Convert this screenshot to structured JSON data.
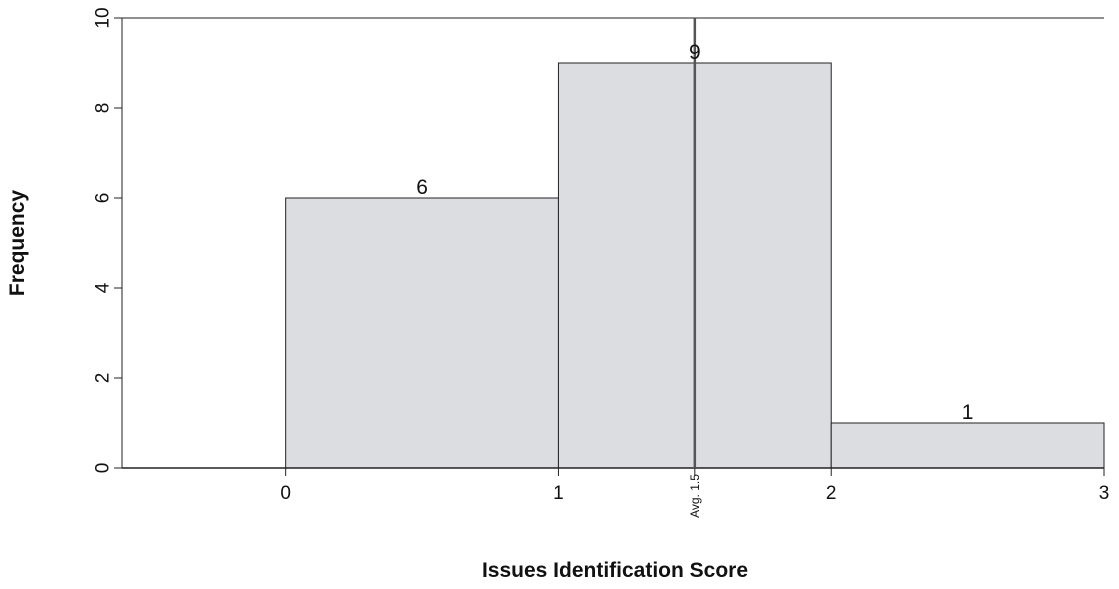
{
  "chart_data": {
    "type": "bar",
    "title": "",
    "xlabel": "Issues Identification Score",
    "ylabel": "Frequency",
    "xlim": [
      -0.6,
      3
    ],
    "ylim": [
      0,
      10
    ],
    "x_ticks": [
      0,
      1,
      2,
      3
    ],
    "y_ticks": [
      0,
      2,
      4,
      6,
      8,
      10
    ],
    "bins": [
      {
        "start": 0,
        "end": 1,
        "value": 6,
        "label": "6"
      },
      {
        "start": 1,
        "end": 2,
        "value": 9,
        "label": "9"
      },
      {
        "start": 2,
        "end": 3,
        "value": 1,
        "label": "1"
      }
    ],
    "mean_line": {
      "value": 1.5,
      "label": "Avg. 1.5"
    },
    "grid": false,
    "colors": {
      "bar_fill": "#dcdde0",
      "bar_stroke": "#222222",
      "axis": "#222222",
      "mean_line": "#555555"
    }
  }
}
